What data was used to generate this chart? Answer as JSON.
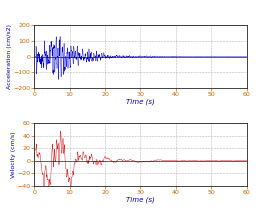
{
  "acc_ylabel": "Acceleration (cm/s2)",
  "vel_ylabel": "Velocity (cm/s)",
  "xlabel": "Time (s)",
  "xlim": [
    0,
    60
  ],
  "acc_ylim": [
    -200,
    200
  ],
  "vel_ylim": [
    -40,
    60
  ],
  "acc_yticks": [
    -200,
    -100,
    0,
    100,
    200
  ],
  "vel_yticks": [
    -40,
    -20,
    0,
    20,
    40,
    60
  ],
  "xticks": [
    0,
    10,
    20,
    30,
    40,
    50,
    60
  ],
  "acc_color": "#0000CC",
  "vel_color": "#CC0000",
  "dt": 0.005,
  "duration": 60.0,
  "acc_peak": 145,
  "vel_peak": 47,
  "grid_color": "#aaaaaa",
  "grid_style": "--",
  "bg_color": "#ffffff",
  "tick_color": "#CC6600",
  "label_color": "#0000AA",
  "spine_color": "#222222"
}
